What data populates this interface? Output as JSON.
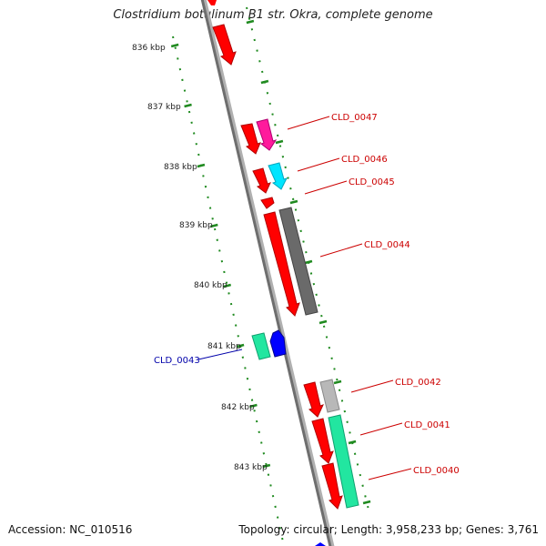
{
  "title": "Clostridium botulinum B1 str. Okra, complete genome",
  "accession": "Accession: NC_010516",
  "summary": "Topology: circular; Length: 3,958,233 bp; Genes: 3,761",
  "colors": {
    "backbone": "#808080",
    "ruler": "#1f8a1f",
    "label_forward": "#cc0000",
    "label_reverse": "#0000aa",
    "cds": "#ff0000",
    "magenta": "#ff1a9c",
    "cyan": "#00e5ff",
    "gray": "#6a6a6a",
    "light_gray": "#b8b8b8",
    "green": "#22e6a0",
    "blue": "#0000ff"
  },
  "ticks": [
    "836 kbp",
    "837 kbp",
    "838 kbp",
    "839 kbp",
    "840 kbp",
    "841 kbp",
    "842 kbp",
    "843 kbp"
  ],
  "labels": [
    {
      "text": "CLD_0047",
      "strand": "forward"
    },
    {
      "text": "CLD_0046",
      "strand": "forward"
    },
    {
      "text": "CLD_0045",
      "strand": "forward"
    },
    {
      "text": "CLD_0044",
      "strand": "forward"
    },
    {
      "text": "CLD_0043",
      "strand": "reverse"
    },
    {
      "text": "CLD_0042",
      "strand": "forward"
    },
    {
      "text": "CLD_0041",
      "strand": "forward"
    },
    {
      "text": "CLD_0040",
      "strand": "forward"
    }
  ]
}
